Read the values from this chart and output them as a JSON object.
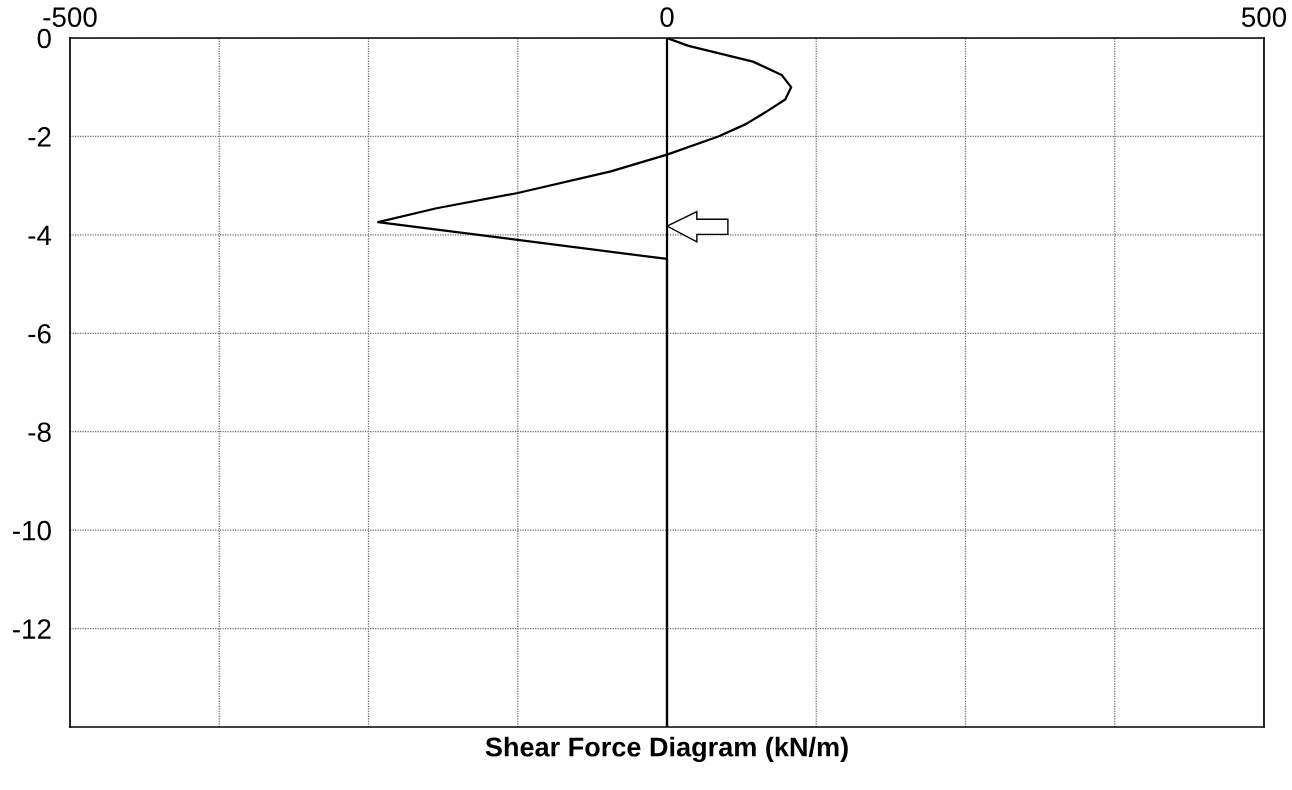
{
  "chart_data": {
    "type": "line",
    "xlabel": "Shear Force Diagram (kN/m)",
    "series": [
      {
        "color": "#000000",
        "x": [
          0,
          18,
          72,
          96,
          104,
          99,
          83,
          66,
          43,
          0,
          -47,
          -125,
          -193,
          -242,
          0,
          0
        ],
        "values": [
          0,
          -0.16,
          -0.48,
          -0.75,
          -1.0,
          -1.25,
          -1.5,
          -1.75,
          -2.0,
          -2.37,
          -2.71,
          -3.15,
          -3.46,
          -3.74,
          -4.49,
          -14
        ]
      }
    ],
    "xlim": [
      -500,
      500
    ],
    "xticks": [
      -500,
      {
        "value": -375,
        "label": null
      },
      {
        "value": -250,
        "label": null
      },
      {
        "value": -125,
        "label": null
      },
      0,
      {
        "value": 125,
        "label": null
      },
      {
        "value": 250,
        "label": null
      },
      {
        "value": 375,
        "label": null
      },
      500
    ],
    "ylim": [
      -14,
      0
    ],
    "yticks": [
      0,
      -2,
      -4,
      -6,
      -8,
      -10,
      -12
    ],
    "ref_lines": [
      {
        "axis": "x",
        "value": 0,
        "color": "#000000",
        "line_style": "solid"
      }
    ],
    "grid": true
  }
}
